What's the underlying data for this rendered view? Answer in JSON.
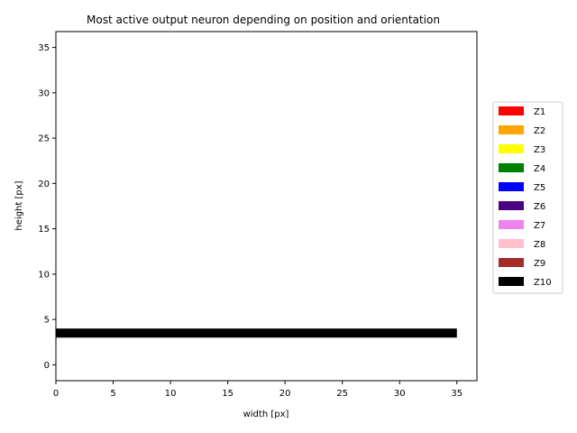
{
  "chart_data": {
    "type": "bar",
    "title": "Most active output neuron depending on position and orientation",
    "xlabel": "width [px]",
    "ylabel": "height [px]",
    "xlim": [
      0,
      36.75
    ],
    "ylim": [
      -1.75,
      36.75
    ],
    "xticks": [
      0,
      5,
      10,
      15,
      20,
      25,
      30,
      35
    ],
    "yticks": [
      0,
      5,
      10,
      15,
      20,
      25,
      30,
      35
    ],
    "grid": false,
    "legend_position": "right",
    "legend": [
      {
        "label": "Z1",
        "color": "#ff0000"
      },
      {
        "label": "Z2",
        "color": "#ffa500"
      },
      {
        "label": "Z3",
        "color": "#ffff00"
      },
      {
        "label": "Z4",
        "color": "#008000"
      },
      {
        "label": "Z5",
        "color": "#0000ff"
      },
      {
        "label": "Z6",
        "color": "#4b0082"
      },
      {
        "label": "Z7",
        "color": "#ee82ee"
      },
      {
        "label": "Z8",
        "color": "#ffc0cb"
      },
      {
        "label": "Z9",
        "color": "#a52a2a"
      },
      {
        "label": "Z10",
        "color": "#000000"
      }
    ],
    "segments": [
      {
        "x_start": 0,
        "x_end": 35,
        "y": 3.5,
        "thickness": 1,
        "neuron": "Z10",
        "color": "#000000"
      }
    ]
  }
}
